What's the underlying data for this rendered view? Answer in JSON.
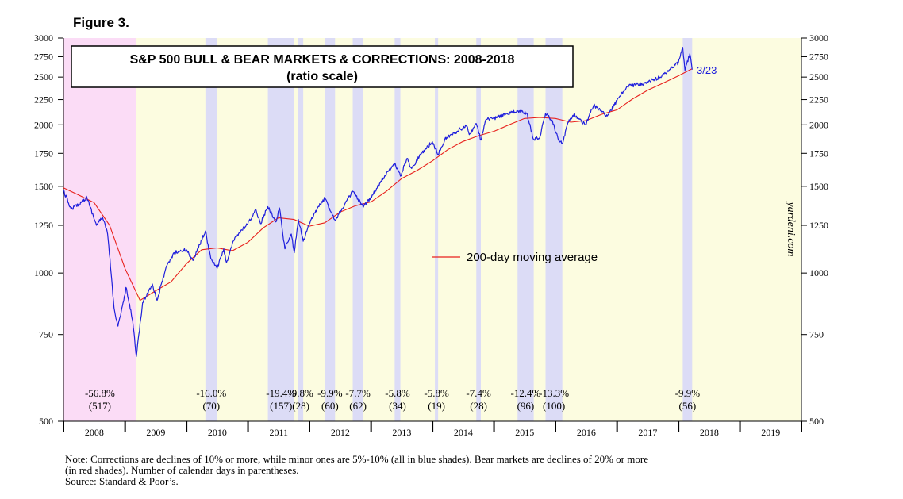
{
  "figure_label": "Figure 3.",
  "chart_data": {
    "type": "line",
    "title": "S&P 500 BULL & BEAR MARKETS & CORRECTIONS: 2008-2018",
    "subtitle": "(ratio scale)",
    "y_scale": "log",
    "ylim": [
      500,
      3000
    ],
    "xlim": [
      "2008-01-01",
      "2020-01-01"
    ],
    "y_ticks": [
      500,
      750,
      1000,
      1250,
      1500,
      1750,
      2000,
      2250,
      2500,
      2750,
      3000
    ],
    "x_tick_labels": [
      "2008",
      "2009",
      "2010",
      "2011",
      "2012",
      "2013",
      "2014",
      "2015",
      "2016",
      "2017",
      "2018",
      "2019"
    ],
    "colors": {
      "sp500": "#1f1fdc",
      "ma200": "#e8201c",
      "bear_shade": "#fbdcf6",
      "correction_shade": "#dcdcf6",
      "bull_background": "#fcfce0"
    },
    "series": [
      {
        "name": "S&P 500",
        "x": [
          "2008-01-01",
          "2008-02-15",
          "2008-04-01",
          "2008-05-19",
          "2008-07-15",
          "2008-08-20",
          "2008-09-19",
          "2008-10-10",
          "2008-10-27",
          "2008-11-20",
          "2008-12-31",
          "2009-01-06",
          "2009-02-15",
          "2009-03-09",
          "2009-04-15",
          "2009-06-12",
          "2009-07-10",
          "2009-08-30",
          "2009-10-19",
          "2009-12-31",
          "2010-02-08",
          "2010-04-23",
          "2010-05-25",
          "2010-07-02",
          "2010-08-10",
          "2010-08-26",
          "2010-10-15",
          "2010-12-31",
          "2011-02-18",
          "2011-03-16",
          "2011-04-29",
          "2011-06-15",
          "2011-07-07",
          "2011-08-08",
          "2011-09-15",
          "2011-10-03",
          "2011-10-27",
          "2011-11-25",
          "2011-12-31",
          "2012-02-15",
          "2012-04-02",
          "2012-06-01",
          "2012-09-14",
          "2012-11-15",
          "2012-12-31",
          "2013-03-15",
          "2013-05-21",
          "2013-06-24",
          "2013-08-02",
          "2013-08-30",
          "2013-10-15",
          "2013-12-31",
          "2014-02-03",
          "2014-03-15",
          "2014-06-15",
          "2014-07-24",
          "2014-08-07",
          "2014-09-18",
          "2014-10-15",
          "2014-11-15",
          "2014-12-31",
          "2015-03-10",
          "2015-05-21",
          "2015-07-15",
          "2015-08-24",
          "2015-09-29",
          "2015-11-03",
          "2015-12-15",
          "2016-01-20",
          "2016-02-11",
          "2016-03-15",
          "2016-04-20",
          "2016-06-27",
          "2016-08-15",
          "2016-11-04",
          "2016-12-31",
          "2017-03-01",
          "2017-06-15",
          "2017-09-15",
          "2017-12-31",
          "2018-01-26",
          "2018-02-08",
          "2018-03-09",
          "2018-03-23"
        ],
        "values": [
          1468,
          1350,
          1380,
          1426,
          1250,
          1300,
          1200,
          1000,
          850,
          780,
          903,
          935,
          800,
          677,
          870,
          950,
          880,
          1020,
          1100,
          1115,
          1060,
          1217,
          1070,
          1022,
          1120,
          1050,
          1180,
          1258,
          1343,
          1260,
          1364,
          1270,
          1356,
          1120,
          1200,
          1100,
          1285,
          1160,
          1258,
          1350,
          1419,
          1280,
          1466,
          1360,
          1426,
          1560,
          1669,
          1573,
          1709,
          1630,
          1730,
          1848,
          1742,
          1870,
          1960,
          1988,
          1910,
          2011,
          1862,
          2050,
          2060,
          2100,
          2131,
          2110,
          1867,
          1884,
          2110,
          2030,
          1860,
          1829,
          2020,
          2100,
          2000,
          2190,
          2085,
          2239,
          2395,
          2430,
          2500,
          2674,
          2873,
          2581,
          2786,
          2588
        ]
      },
      {
        "name": "200-day moving average",
        "x": [
          "2008-01-01",
          "2008-04-01",
          "2008-07-01",
          "2008-10-01",
          "2009-01-01",
          "2009-03-31",
          "2009-07-01",
          "2009-10-01",
          "2010-01-01",
          "2010-04-01",
          "2010-07-01",
          "2010-10-01",
          "2011-01-01",
          "2011-04-01",
          "2011-07-01",
          "2011-10-01",
          "2012-01-01",
          "2012-04-01",
          "2012-07-01",
          "2012-10-01",
          "2013-01-01",
          "2013-04-01",
          "2013-07-01",
          "2013-10-01",
          "2014-01-01",
          "2014-04-01",
          "2014-07-01",
          "2014-10-01",
          "2015-01-01",
          "2015-04-01",
          "2015-07-01",
          "2015-10-01",
          "2016-01-01",
          "2016-04-01",
          "2016-07-01",
          "2016-10-01",
          "2017-01-01",
          "2017-04-01",
          "2017-07-01",
          "2017-10-01",
          "2018-01-01",
          "2018-03-23"
        ],
        "values": [
          1490,
          1440,
          1390,
          1250,
          1020,
          880,
          920,
          960,
          1045,
          1115,
          1125,
          1110,
          1155,
          1235,
          1295,
          1285,
          1245,
          1265,
          1330,
          1370,
          1395,
          1465,
          1555,
          1615,
          1690,
          1780,
          1850,
          1900,
          1940,
          2000,
          2060,
          2070,
          2060,
          2025,
          2040,
          2100,
          2145,
          2255,
          2350,
          2430,
          2515,
          2600
        ]
      }
    ],
    "periods": [
      {
        "type": "bear",
        "start": "2008-01-01",
        "end": "2009-03-09",
        "decline": "-56.8%",
        "days": "(517)"
      },
      {
        "type": "correction",
        "start": "2010-04-23",
        "end": "2010-07-02",
        "decline": "-16.0%",
        "days": "(70)"
      },
      {
        "type": "correction",
        "start": "2011-04-29",
        "end": "2011-10-03",
        "decline": "-19.4%",
        "days": "(157)"
      },
      {
        "type": "correction",
        "start": "2011-10-27",
        "end": "2011-11-25",
        "decline": "-9.8%",
        "days": "(28)"
      },
      {
        "type": "correction",
        "start": "2012-04-02",
        "end": "2012-06-01",
        "decline": "-9.9%",
        "days": "(60)"
      },
      {
        "type": "correction",
        "start": "2012-09-14",
        "end": "2012-11-15",
        "decline": "-7.7%",
        "days": "(62)"
      },
      {
        "type": "correction",
        "start": "2013-05-21",
        "end": "2013-06-24",
        "decline": "-5.8%",
        "days": "(34)"
      },
      {
        "type": "correction",
        "start": "2014-01-15",
        "end": "2014-02-03",
        "decline": "-5.8%",
        "days": "(19)"
      },
      {
        "type": "correction",
        "start": "2014-09-18",
        "end": "2014-10-15",
        "decline": "-7.4%",
        "days": "(28)"
      },
      {
        "type": "correction",
        "start": "2015-05-21",
        "end": "2015-08-25",
        "decline": "-12.4%",
        "days": "(96)"
      },
      {
        "type": "correction",
        "start": "2015-11-03",
        "end": "2016-02-11",
        "decline": "-13.3%",
        "days": "(100)"
      },
      {
        "type": "correction",
        "start": "2018-01-26",
        "end": "2018-03-23",
        "decline": "-9.9%",
        "days": "(56)"
      }
    ],
    "end_label": "3/23",
    "legend_label": "200-day moving average",
    "source_mark": "yardeni.com"
  },
  "notes": [
    "Note: Corrections are declines of 10% or more, while minor ones are 5%-10% (all in blue shades).  Bear markets are declines of 20% or more",
    "(in red shades). Number of calendar days in parentheses.",
    "Source: Standard & Poor’s."
  ]
}
